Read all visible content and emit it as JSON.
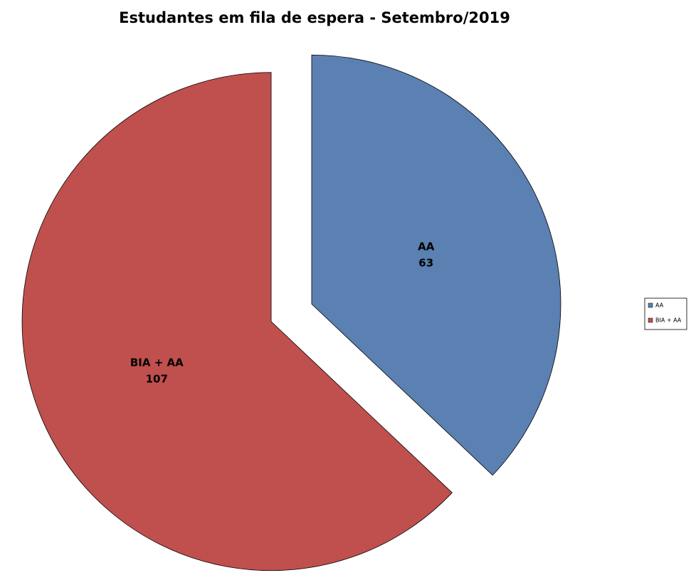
{
  "chart_data": {
    "type": "pie",
    "title": "Estudantes em fila de espera - Setembro/2019",
    "categories": [
      "AA",
      "BIA + AA"
    ],
    "values": [
      63,
      107
    ],
    "colors": [
      "#5b80b2",
      "#c0504d"
    ],
    "exploded": true,
    "legend": "right"
  }
}
